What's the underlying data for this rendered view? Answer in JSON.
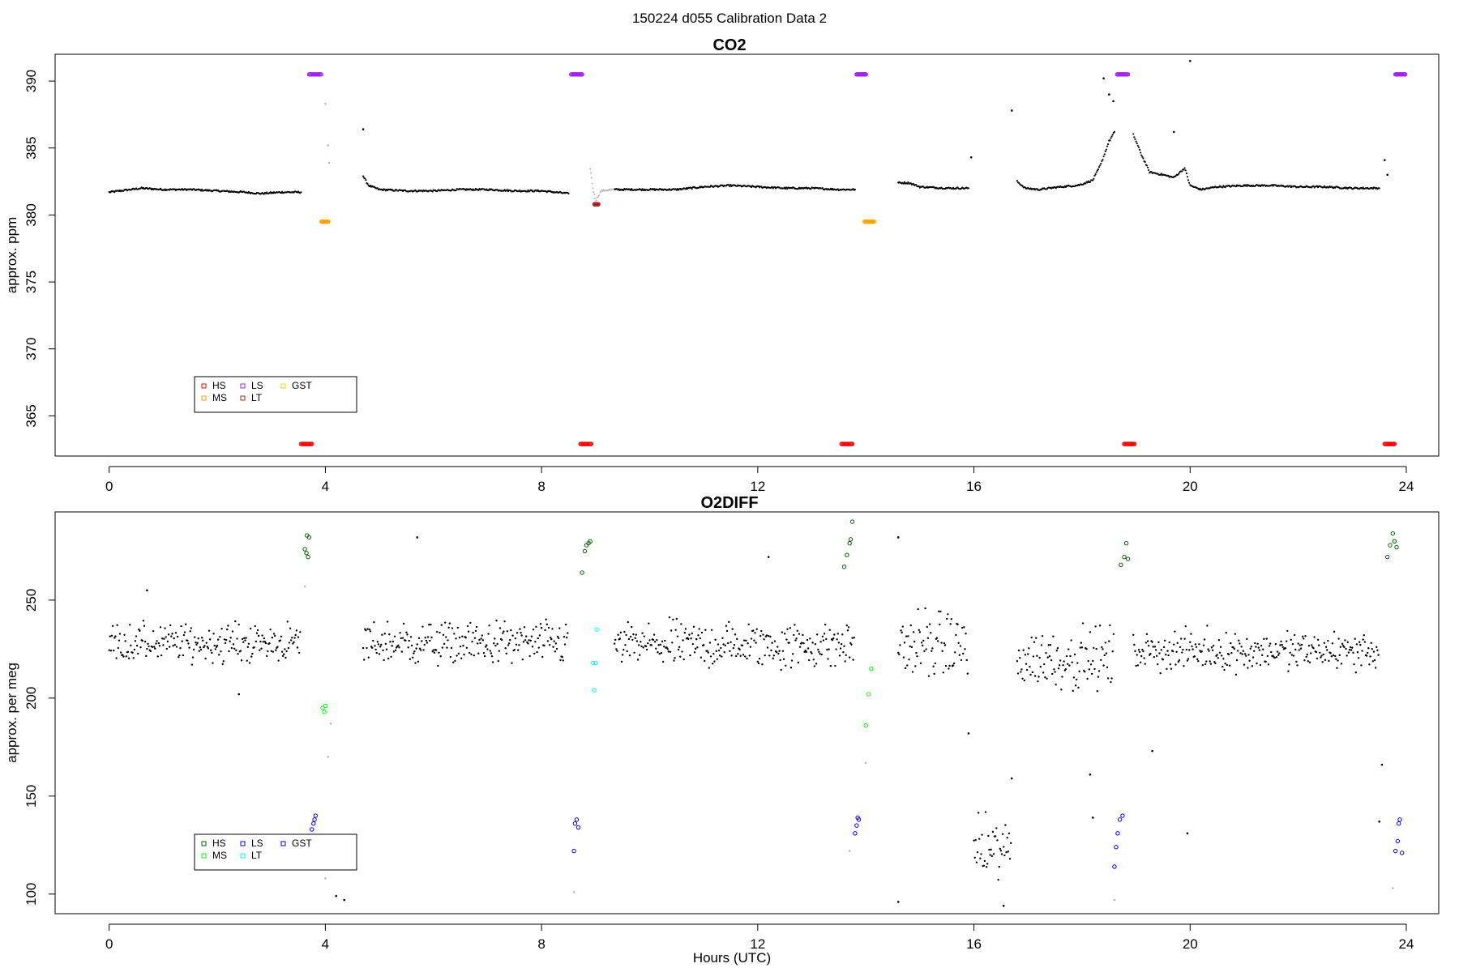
{
  "suptitle": "150224   d055   Calibration Data 2",
  "xlabel": "Hours (UTC)",
  "chart_data": [
    {
      "type": "scatter",
      "title": "CO2",
      "ylabel": "approx. ppm",
      "xlim": [
        -1,
        24.6
      ],
      "ylim": [
        362,
        392
      ],
      "xticks": [
        0,
        4,
        8,
        12,
        16,
        20,
        24
      ],
      "yticks": [
        365,
        370,
        375,
        380,
        385,
        390
      ],
      "legend": {
        "position": "bottom-left",
        "entries": [
          {
            "label": "HS",
            "color": "#ff0000"
          },
          {
            "label": "LS",
            "color": "#a020f0"
          },
          {
            "label": "GST",
            "color": "#ffd700"
          },
          {
            "label": "MS",
            "color": "#ffa500"
          },
          {
            "label": "LT",
            "color": "#b22222"
          }
        ]
      },
      "calibrations": [
        {
          "name": "LS",
          "color": "#a020f0",
          "x": [
            3.7,
            3.92
          ],
          "y": 390.5
        },
        {
          "name": "MS",
          "color": "#ffa500",
          "x": [
            3.93,
            4.05
          ],
          "y": 379.5
        },
        {
          "name": "HS",
          "color": "#ff0000",
          "x": [
            3.55,
            3.75
          ],
          "y": 362.9
        },
        {
          "name": "LS",
          "color": "#a020f0",
          "x": [
            8.55,
            8.75
          ],
          "y": 390.5
        },
        {
          "name": "HS",
          "color": "#ff0000",
          "x": [
            8.72,
            8.92
          ],
          "y": 362.9
        },
        {
          "name": "LT",
          "color": "#b22222",
          "x": [
            8.98,
            9.05
          ],
          "y": 380.8
        },
        {
          "name": "LS",
          "color": "#a020f0",
          "x": [
            13.83,
            14.0
          ],
          "y": 390.5
        },
        {
          "name": "MS",
          "color": "#ffa500",
          "x": [
            13.98,
            14.15
          ],
          "y": 379.5
        },
        {
          "name": "HS",
          "color": "#ff0000",
          "x": [
            13.55,
            13.75
          ],
          "y": 362.9
        },
        {
          "name": "LS",
          "color": "#a020f0",
          "x": [
            18.65,
            18.85
          ],
          "y": 390.5
        },
        {
          "name": "HS",
          "color": "#ff0000",
          "x": [
            18.78,
            18.97
          ],
          "y": 362.9
        },
        {
          "name": "HS",
          "color": "#ff0000",
          "x": [
            23.6,
            23.78
          ],
          "y": 362.9
        },
        {
          "name": "LS",
          "color": "#a020f0",
          "x": [
            23.8,
            23.98
          ],
          "y": 390.5
        }
      ],
      "data_segments": [
        {
          "color": "#000000",
          "points": [
            [
              0.0,
              381.7
            ],
            [
              0.4,
              381.9
            ],
            [
              0.6,
              382.0
            ],
            [
              1.0,
              381.9
            ],
            [
              1.5,
              381.9
            ],
            [
              2.0,
              381.8
            ],
            [
              2.5,
              381.7
            ],
            [
              2.8,
              381.6
            ],
            [
              3.2,
              381.7
            ],
            [
              3.55,
              381.7
            ]
          ]
        },
        {
          "color": "#000000",
          "points": [
            [
              4.7,
              382.9
            ],
            [
              4.8,
              382.2
            ],
            [
              5.0,
              381.9
            ],
            [
              5.5,
              381.8
            ],
            [
              6.0,
              381.8
            ],
            [
              6.5,
              381.9
            ],
            [
              7.0,
              381.9
            ],
            [
              7.5,
              381.8
            ],
            [
              8.0,
              381.8
            ],
            [
              8.5,
              381.6
            ]
          ]
        },
        {
          "color": "#bbbbbb",
          "points": [
            [
              8.9,
              383.5
            ],
            [
              8.95,
              382.0
            ],
            [
              9.0,
              381.0
            ],
            [
              9.1,
              381.8
            ],
            [
              9.3,
              381.9
            ]
          ]
        },
        {
          "color": "#000000",
          "points": [
            [
              9.35,
              381.9
            ],
            [
              10.0,
              381.9
            ],
            [
              10.5,
              381.9
            ],
            [
              11.0,
              382.1
            ],
            [
              11.5,
              382.2
            ],
            [
              12.0,
              382.1
            ],
            [
              12.5,
              382.0
            ],
            [
              13.0,
              382.0
            ],
            [
              13.5,
              381.9
            ],
            [
              13.8,
              381.9
            ]
          ]
        },
        {
          "color": "#000000",
          "points": [
            [
              14.6,
              382.4
            ],
            [
              14.8,
              382.4
            ],
            [
              15.0,
              382.1
            ],
            [
              15.5,
              382.0
            ],
            [
              15.9,
              382.0
            ]
          ]
        },
        {
          "color": "#000000",
          "points": [
            [
              16.8,
              382.5
            ],
            [
              16.95,
              382.0
            ],
            [
              17.2,
              381.9
            ],
            [
              17.6,
              382.1
            ],
            [
              17.9,
              382.2
            ],
            [
              18.0,
              382.3
            ],
            [
              18.2,
              382.6
            ],
            [
              18.35,
              383.8
            ],
            [
              18.5,
              385.5
            ],
            [
              18.6,
              386.2
            ]
          ]
        },
        {
          "color": "#000000",
          "points": [
            [
              18.95,
              386.0
            ],
            [
              19.1,
              384.5
            ],
            [
              19.25,
              383.2
            ],
            [
              19.5,
              383.0
            ],
            [
              19.7,
              382.8
            ],
            [
              19.9,
              383.5
            ],
            [
              20.0,
              382.2
            ],
            [
              20.2,
              381.9
            ],
            [
              20.5,
              382.1
            ],
            [
              21.0,
              382.2
            ],
            [
              21.5,
              382.2
            ],
            [
              22.0,
              382.1
            ],
            [
              22.5,
              382.1
            ],
            [
              23.0,
              382.0
            ],
            [
              23.5,
              382.0
            ]
          ]
        }
      ],
      "outliers": [
        {
          "x": 4.7,
          "y": 386.4,
          "color": "#000000"
        },
        {
          "x": 4.0,
          "y": 388.3,
          "color": "#bbbbbb"
        },
        {
          "x": 4.05,
          "y": 385.2,
          "color": "#bbbbbb"
        },
        {
          "x": 4.07,
          "y": 383.9,
          "color": "#bbbbbb"
        },
        {
          "x": 15.95,
          "y": 384.3,
          "color": "#000000"
        },
        {
          "x": 16.7,
          "y": 387.8,
          "color": "#000000"
        },
        {
          "x": 18.4,
          "y": 390.2,
          "color": "#000000"
        },
        {
          "x": 18.5,
          "y": 389.0,
          "color": "#000000"
        },
        {
          "x": 18.58,
          "y": 388.5,
          "color": "#000000"
        },
        {
          "x": 19.7,
          "y": 386.2,
          "color": "#000000"
        },
        {
          "x": 20.0,
          "y": 391.5,
          "color": "#000000"
        },
        {
          "x": 23.6,
          "y": 384.1,
          "color": "#000000"
        },
        {
          "x": 23.65,
          "y": 383.0,
          "color": "#000000"
        }
      ]
    },
    {
      "type": "scatter",
      "title": "O2DIFF",
      "ylabel": "approx. per meg",
      "xlim": [
        -1,
        24.6
      ],
      "ylim": [
        90,
        295
      ],
      "xticks": [
        0,
        4,
        8,
        12,
        16,
        20,
        24
      ],
      "yticks": [
        100,
        150,
        200,
        250
      ],
      "legend": {
        "position": "bottom-left",
        "entries": [
          {
            "label": "HS",
            "color": "#006400"
          },
          {
            "label": "LS",
            "color": "#0000ff"
          },
          {
            "label": "GST",
            "color": "#0000cd"
          },
          {
            "label": "MS",
            "color": "#00ff00"
          },
          {
            "label": "LT",
            "color": "#00ffff"
          }
        ]
      },
      "calibrations": [
        {
          "name": "HS",
          "color": "#006400",
          "points": [
            [
              3.62,
              276
            ],
            [
              3.66,
              283
            ],
            [
              3.68,
              272
            ],
            [
              3.7,
              282
            ],
            [
              3.65,
              274
            ]
          ]
        },
        {
          "name": "MS",
          "color": "#00ff00",
          "points": [
            [
              3.95,
              195
            ],
            [
              3.98,
              193
            ],
            [
              4.0,
              196
            ]
          ]
        },
        {
          "name": "LS",
          "color": "#0000ff",
          "points": [
            [
              3.75,
              133
            ],
            [
              3.78,
              136
            ],
            [
              3.82,
              140
            ],
            [
              3.8,
              138
            ]
          ]
        },
        {
          "name": "HS",
          "color": "#006400",
          "points": [
            [
              8.75,
              264
            ],
            [
              8.8,
              275
            ],
            [
              8.83,
              278
            ],
            [
              8.87,
              279
            ],
            [
              8.9,
              280
            ]
          ]
        },
        {
          "name": "LS",
          "color": "#0000ff",
          "points": [
            [
              8.6,
              122
            ],
            [
              8.62,
              136
            ],
            [
              8.65,
              138
            ],
            [
              8.68,
              134
            ]
          ]
        },
        {
          "name": "LT",
          "color": "#00ffff",
          "points": [
            [
              8.95,
              218
            ],
            [
              9.0,
              218
            ],
            [
              9.02,
              235
            ],
            [
              8.97,
              204
            ]
          ]
        },
        {
          "name": "HS",
          "color": "#006400",
          "points": [
            [
              13.6,
              267
            ],
            [
              13.65,
              273
            ],
            [
              13.7,
              279
            ],
            [
              13.72,
              281
            ],
            [
              13.75,
              290
            ]
          ]
        },
        {
          "name": "MS",
          "color": "#00ff00",
          "points": [
            [
              14.0,
              186
            ],
            [
              14.05,
              202
            ],
            [
              14.1,
              215
            ]
          ]
        },
        {
          "name": "LS",
          "color": "#0000ff",
          "points": [
            [
              13.8,
              131
            ],
            [
              13.83,
              135
            ],
            [
              13.87,
              138
            ],
            [
              13.85,
              139
            ]
          ]
        },
        {
          "name": "HS",
          "color": "#006400",
          "points": [
            [
              18.72,
              268
            ],
            [
              18.78,
              272
            ],
            [
              18.82,
              279
            ],
            [
              18.85,
              271
            ]
          ]
        },
        {
          "name": "LS",
          "color": "#0000ff",
          "points": [
            [
              18.6,
              114
            ],
            [
              18.63,
              124
            ],
            [
              18.66,
              131
            ],
            [
              18.7,
              138
            ],
            [
              18.75,
              140
            ]
          ]
        },
        {
          "name": "HS",
          "color": "#006400",
          "points": [
            [
              23.65,
              272
            ],
            [
              23.7,
              278
            ],
            [
              23.75,
              284
            ],
            [
              23.78,
              280
            ],
            [
              23.82,
              277
            ]
          ]
        },
        {
          "name": "LS",
          "color": "#0000ff",
          "points": [
            [
              23.8,
              122
            ],
            [
              23.84,
              127
            ],
            [
              23.88,
              138
            ],
            [
              23.92,
              121
            ],
            [
              23.86,
              136
            ]
          ]
        }
      ],
      "data_segments": [
        {
          "color": "#000000",
          "x_range": [
            0.0,
            3.55
          ],
          "mean": 228,
          "spread": 9
        },
        {
          "color": "#000000",
          "x_range": [
            4.7,
            8.5
          ],
          "mean": 228,
          "spread": 10
        },
        {
          "color": "#000000",
          "x_range": [
            9.35,
            13.8
          ],
          "mean": 227,
          "spread": 11
        },
        {
          "color": "#000000",
          "x_range": [
            14.6,
            15.9
          ],
          "mean": 227,
          "spread": 16
        },
        {
          "color": "#000000",
          "x_range": [
            16.0,
            16.7
          ],
          "mean": 122,
          "spread": 15
        },
        {
          "color": "#000000",
          "x_range": [
            16.8,
            18.6
          ],
          "mean": 220,
          "spread": 14
        },
        {
          "color": "#000000",
          "x_range": [
            18.95,
            23.5
          ],
          "mean": 224,
          "spread": 9
        }
      ],
      "outliers": [
        {
          "x": 0.7,
          "y": 255,
          "color": "#000000"
        },
        {
          "x": 2.4,
          "y": 202,
          "color": "#000000"
        },
        {
          "x": 4.35,
          "y": 97,
          "color": "#000000"
        },
        {
          "x": 4.2,
          "y": 99,
          "color": "#000000"
        },
        {
          "x": 5.7,
          "y": 282,
          "color": "#000000"
        },
        {
          "x": 12.2,
          "y": 272,
          "color": "#000000"
        },
        {
          "x": 14.6,
          "y": 282,
          "color": "#000000"
        },
        {
          "x": 14.6,
          "y": 96,
          "color": "#000000"
        },
        {
          "x": 15.9,
          "y": 182,
          "color": "#000000"
        },
        {
          "x": 16.7,
          "y": 159,
          "color": "#000000"
        },
        {
          "x": 16.55,
          "y": 94,
          "color": "#000000"
        },
        {
          "x": 18.2,
          "y": 139,
          "color": "#000000"
        },
        {
          "x": 18.15,
          "y": 161,
          "color": "#000000"
        },
        {
          "x": 19.3,
          "y": 173,
          "color": "#000000"
        },
        {
          "x": 19.95,
          "y": 131,
          "color": "#000000"
        },
        {
          "x": 23.55,
          "y": 166,
          "color": "#000000"
        },
        {
          "x": 23.5,
          "y": 137,
          "color": "#000000"
        },
        {
          "x": 3.62,
          "y": 257,
          "color": "#bbbbbb"
        },
        {
          "x": 4.05,
          "y": 170,
          "color": "#bbbbbb"
        },
        {
          "x": 4.1,
          "y": 187,
          "color": "#bbbbbb"
        },
        {
          "x": 4.0,
          "y": 108,
          "color": "#bbbbbb"
        },
        {
          "x": 8.6,
          "y": 101,
          "color": "#bbbbbb"
        },
        {
          "x": 13.7,
          "y": 122,
          "color": "#bbbbbb"
        },
        {
          "x": 14.0,
          "y": 167,
          "color": "#bbbbbb"
        },
        {
          "x": 18.6,
          "y": 97,
          "color": "#bbbbbb"
        },
        {
          "x": 23.75,
          "y": 103,
          "color": "#bbbbbb"
        }
      ]
    }
  ]
}
